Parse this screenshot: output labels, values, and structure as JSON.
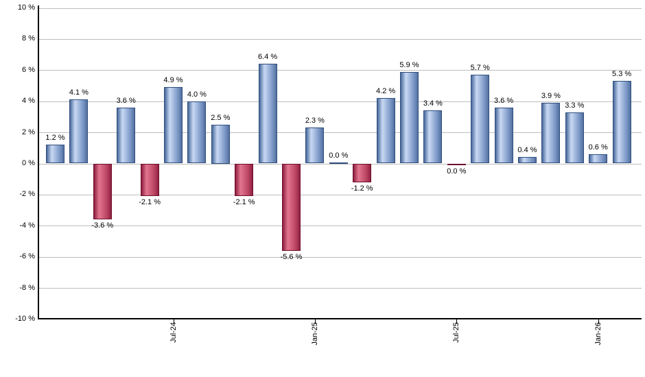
{
  "chart_data": {
    "type": "bar",
    "title": "",
    "xlabel": "",
    "ylabel": "",
    "ylim": [
      -10,
      10
    ],
    "ytick_step": 2,
    "grid": true,
    "legend": "none",
    "value_label_format": "0.0 %",
    "y_axis_labels": [
      "10 %",
      "8 %",
      "6 %",
      "4 %",
      "2 %",
      "0 %",
      "-2 %",
      "-4 %",
      "-6 %",
      "-8 %",
      "-10 %"
    ],
    "x_ticks": [
      {
        "bar_index": 5,
        "label": "Jul-24"
      },
      {
        "bar_index": 11,
        "label": "Jan-25"
      },
      {
        "bar_index": 17,
        "label": "Jul-25"
      },
      {
        "bar_index": 23,
        "label": "Jan-26"
      }
    ],
    "bars": [
      {
        "value": 1.2,
        "label": "1.2 %",
        "dir": "pos"
      },
      {
        "value": 4.1,
        "label": "4.1 %",
        "dir": "pos"
      },
      {
        "value": -3.6,
        "label": "-3.6 %",
        "dir": "neg"
      },
      {
        "value": 3.6,
        "label": "3.6 %",
        "dir": "pos"
      },
      {
        "value": -2.1,
        "label": "-2.1 %",
        "dir": "neg"
      },
      {
        "value": 4.9,
        "label": "4.9 %",
        "dir": "pos"
      },
      {
        "value": 4.0,
        "label": "4.0 %",
        "dir": "pos"
      },
      {
        "value": 2.5,
        "label": "2.5 %",
        "dir": "pos"
      },
      {
        "value": -2.1,
        "label": "-2.1 %",
        "dir": "neg"
      },
      {
        "value": 6.4,
        "label": "6.4 %",
        "dir": "pos"
      },
      {
        "value": -5.6,
        "label": "-5.6 %",
        "dir": "neg"
      },
      {
        "value": 2.3,
        "label": "2.3 %",
        "dir": "pos"
      },
      {
        "value": 0.0,
        "label": "0.0 %",
        "dir": "pos"
      },
      {
        "value": -1.2,
        "label": "-1.2 %",
        "dir": "neg"
      },
      {
        "value": 4.2,
        "label": "4.2 %",
        "dir": "pos"
      },
      {
        "value": 5.9,
        "label": "5.9 %",
        "dir": "pos"
      },
      {
        "value": 3.4,
        "label": "3.4 %",
        "dir": "pos"
      },
      {
        "value": 0.0,
        "label": "0.0 %",
        "dir": "neg"
      },
      {
        "value": 5.7,
        "label": "5.7 %",
        "dir": "pos"
      },
      {
        "value": 3.6,
        "label": "3.6 %",
        "dir": "pos"
      },
      {
        "value": 0.4,
        "label": "0.4 %",
        "dir": "pos"
      },
      {
        "value": 3.9,
        "label": "3.9 %",
        "dir": "pos"
      },
      {
        "value": 3.3,
        "label": "3.3 %",
        "dir": "pos"
      },
      {
        "value": 0.6,
        "label": "0.6 %",
        "dir": "pos"
      },
      {
        "value": 5.3,
        "label": "5.3 %",
        "dir": "pos"
      }
    ],
    "colors": {
      "positive_edge": "#47689a",
      "positive_light": "#c9d9f3",
      "positive_mid": "#7d99c8",
      "positive_edge2": "#53709f",
      "positive_border": "#2f4d7d",
      "negative_edge": "#8d1c3e",
      "negative_light": "#e2758f",
      "negative_mid": "#bb4563",
      "negative_edge2": "#932042",
      "negative_border": "#6d0f2c",
      "gridline": "#bdbdbd",
      "axis": "#000000",
      "text": "#000000",
      "background": "#ffffff"
    }
  }
}
